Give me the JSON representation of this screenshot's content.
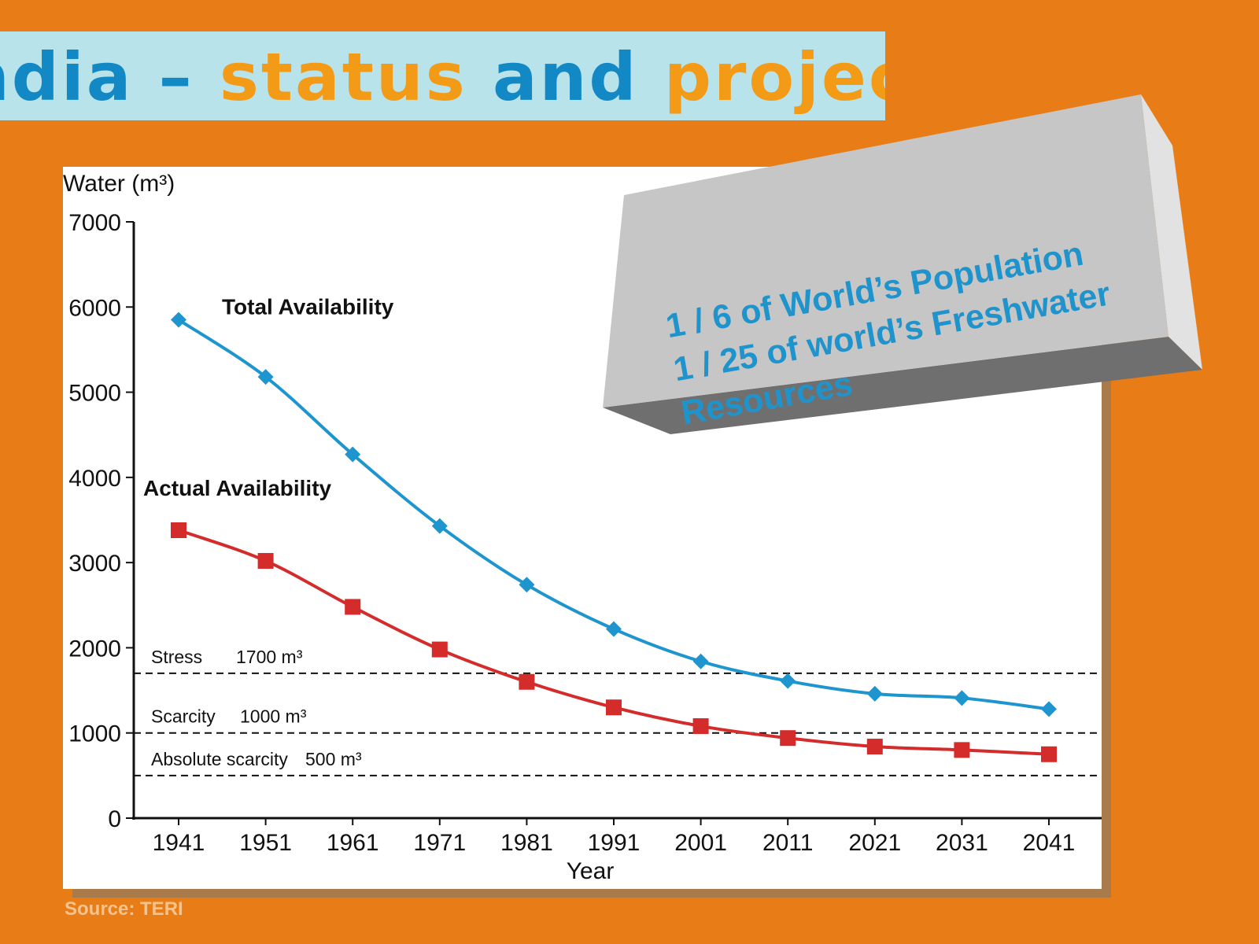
{
  "slide": {
    "title_part1": "ndia – ",
    "title_part2": "status",
    "title_part3": " and ",
    "title_part4": "projections",
    "source": "Source: TERI"
  },
  "callout": {
    "line1": "1 / 6  of World’s Population",
    "line2": "1 / 25  of world’s Freshwater",
    "line3": "Resources"
  },
  "chart_data": {
    "type": "line",
    "ylabel": "Water (m³)",
    "xlabel": "Year",
    "ylim": [
      0,
      7000
    ],
    "yticks": [
      0,
      1000,
      2000,
      3000,
      4000,
      5000,
      6000,
      7000
    ],
    "categories": [
      "1941",
      "1951",
      "1961",
      "1971",
      "1981",
      "1991",
      "2001",
      "2011",
      "2021",
      "2031",
      "2041"
    ],
    "series": [
      {
        "name": "Total Availability",
        "color": "#1e95cf",
        "marker": "diamond",
        "values": [
          5850,
          5180,
          4270,
          3430,
          2740,
          2220,
          1840,
          1610,
          1460,
          1410,
          1280
        ]
      },
      {
        "name": "Actual Availability",
        "color": "#d42b2b",
        "marker": "square",
        "values": [
          3380,
          3020,
          2480,
          1980,
          1600,
          1300,
          1080,
          940,
          840,
          800,
          750
        ]
      }
    ],
    "reference_lines": [
      {
        "label": "Stress",
        "value_label": "1700 m³",
        "value": 1700
      },
      {
        "label": "Scarcity",
        "value_label": "1000 m³",
        "value": 1000
      },
      {
        "label": "Absolute scarcity",
        "value_label": "500 m³",
        "value": 500
      }
    ],
    "grid": false,
    "legend": "inline labels"
  }
}
